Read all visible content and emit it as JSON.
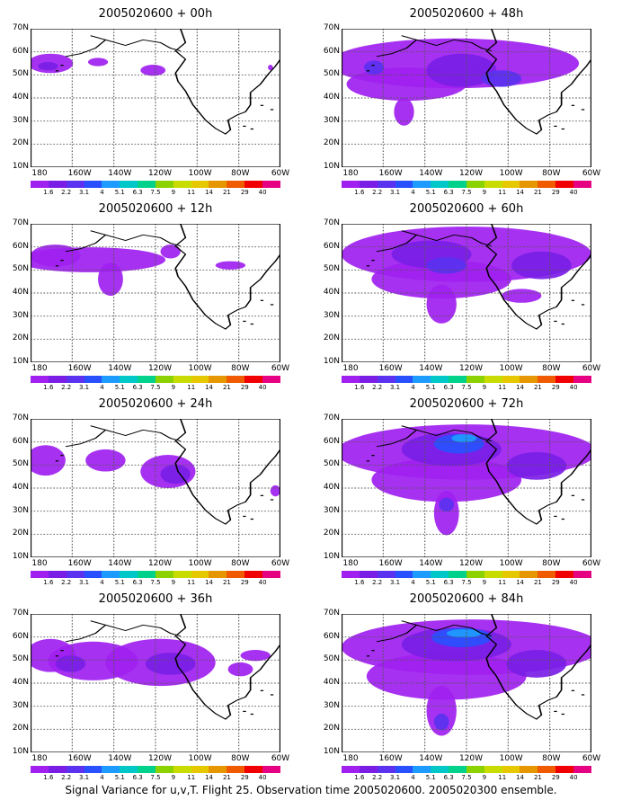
{
  "panels": [
    {
      "title": "2005020600 + 00h",
      "level": 0
    },
    {
      "title": "2005020600 + 48h",
      "level": 4
    },
    {
      "title": "2005020600 + 12h",
      "level": 1
    },
    {
      "title": "2005020600 + 60h",
      "level": 5
    },
    {
      "title": "2005020600 + 24h",
      "level": 2
    },
    {
      "title": "2005020600 + 72h",
      "level": 6
    },
    {
      "title": "2005020600 + 36h",
      "level": 3
    },
    {
      "title": "2005020600 + 84h",
      "level": 7
    }
  ],
  "y_labels": [
    "70N",
    "60N",
    "50N",
    "40N",
    "30N",
    "20N",
    "10N"
  ],
  "x_labels": [
    "180",
    "160W",
    "140W",
    "120W",
    "100W",
    "80W",
    "60W"
  ],
  "colorbar": {
    "labels": [
      "1.6",
      "2.2",
      "3.1",
      "4",
      "5.1",
      "6.3",
      "7.5",
      "9",
      "11",
      "14",
      "21",
      "29",
      "40"
    ],
    "colors": [
      "#a020f0",
      "#7a1ee6",
      "#5a32f0",
      "#2850ff",
      "#1e9bff",
      "#00c8c8",
      "#00d28c",
      "#8cd200",
      "#c8dc00",
      "#e6c800",
      "#e69600",
      "#f05a00",
      "#f00000",
      "#e60082"
    ]
  },
  "footer": "Signal Variance for u,v,T. Flight 25. Observation time 2005020600. 2005020300 ensemble."
}
